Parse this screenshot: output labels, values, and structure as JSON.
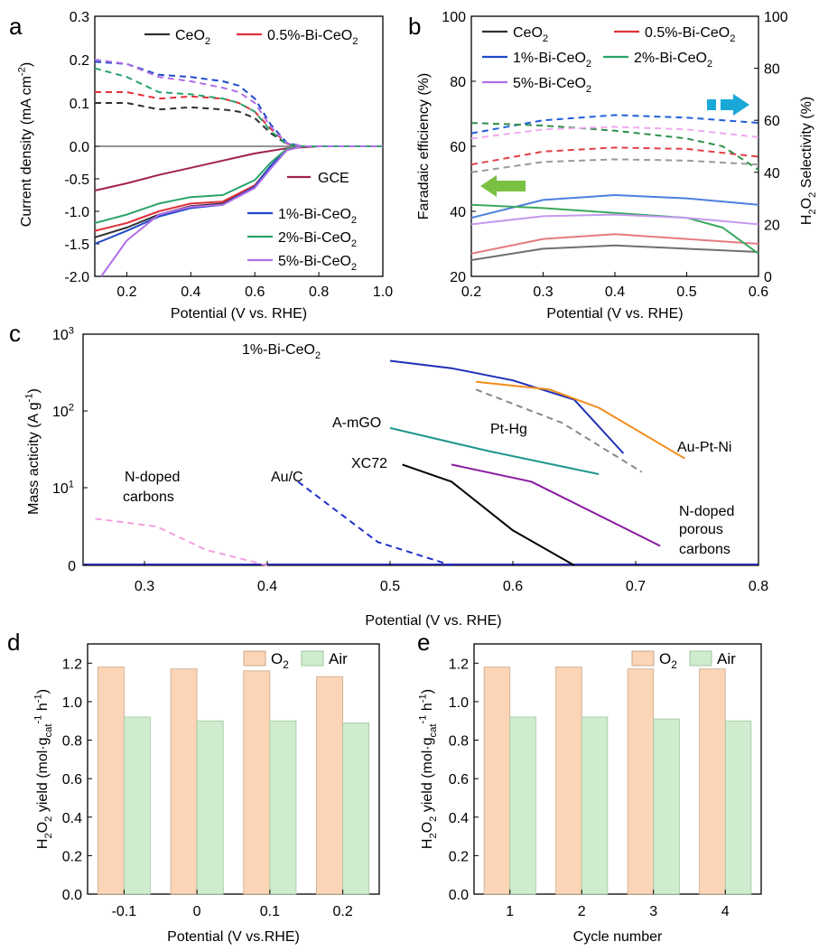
{
  "panels": {
    "a": {
      "letter": "a"
    },
    "b": {
      "letter": "b"
    },
    "c": {
      "letter": "c"
    },
    "d": {
      "letter": "d"
    },
    "e": {
      "letter": "e"
    }
  },
  "colors": {
    "CeO2": "#303030",
    "Bi05": "#e0313a",
    "Bi1": "#1f49c8",
    "Bi2": "#2aa36b",
    "Bi5": "#b06ee8",
    "GCE": "#a02050",
    "O2_bar": "#fbd5b6",
    "Air_bar": "#cfeccf",
    "arrow_green": "#7ac143",
    "arrow_cyan": "#1aa8d8"
  },
  "chart_data": [
    {
      "id": "a",
      "type": "line",
      "xlabel": "Potential (V vs. RHE)",
      "ylabel": "Current density (mA cm-2)",
      "xlim": [
        0.1,
        1.0
      ],
      "ylim": [
        -2.0,
        0.3
      ],
      "xticks": [
        "0.2",
        "0.4",
        "0.6",
        "0.8",
        "1.0"
      ],
      "yticks": [
        "-2.0",
        "-1.5",
        "-1.0",
        "-0.5",
        "0.0",
        "0.1",
        "0.2",
        "0.3"
      ],
      "legend": [
        "CeO2",
        "0.5%-Bi-CeO2",
        "GCE",
        "1%-Bi-CeO2",
        "2%-Bi-CeO2",
        "5%-Bi-CeO2"
      ],
      "series": [
        {
          "name": "CeO2",
          "kind": "disk",
          "x": [
            0.1,
            0.2,
            0.3,
            0.4,
            0.5,
            0.6,
            0.65,
            0.7,
            0.75,
            0.8,
            1.0
          ],
          "y": [
            -1.4,
            -1.25,
            -1.05,
            -0.92,
            -0.88,
            -0.6,
            -0.3,
            -0.05,
            0.0,
            0.0,
            0.0
          ]
        },
        {
          "name": "0.5%-Bi-CeO2",
          "kind": "disk",
          "x": [
            0.1,
            0.2,
            0.3,
            0.4,
            0.5,
            0.6,
            0.65,
            0.7,
            0.75,
            0.8,
            1.0
          ],
          "y": [
            -1.3,
            -1.18,
            -1.0,
            -0.88,
            -0.85,
            -0.6,
            -0.32,
            -0.06,
            0.0,
            0.0,
            0.0
          ]
        },
        {
          "name": "GCE",
          "kind": "disk",
          "x": [
            0.1,
            0.2,
            0.3,
            0.4,
            0.5,
            0.6,
            0.7,
            0.8,
            0.9,
            1.0
          ],
          "y": [
            -0.68,
            -0.57,
            -0.44,
            -0.33,
            -0.22,
            -0.11,
            -0.03,
            0.0,
            0.0,
            0.0
          ]
        },
        {
          "name": "1%-Bi-CeO2",
          "kind": "disk",
          "x": [
            0.1,
            0.2,
            0.3,
            0.4,
            0.5,
            0.6,
            0.65,
            0.7,
            0.75,
            0.8,
            1.0
          ],
          "y": [
            -1.5,
            -1.3,
            -1.08,
            -0.95,
            -0.9,
            -0.62,
            -0.3,
            -0.05,
            0.0,
            0.0,
            0.0
          ]
        },
        {
          "name": "2%-Bi-CeO2",
          "kind": "disk",
          "x": [
            0.1,
            0.2,
            0.3,
            0.4,
            0.5,
            0.6,
            0.65,
            0.7,
            0.75,
            0.8,
            1.0
          ],
          "y": [
            -1.18,
            -1.05,
            -0.88,
            -0.78,
            -0.75,
            -0.52,
            -0.25,
            -0.04,
            0.0,
            0.0,
            0.0
          ]
        },
        {
          "name": "5%-Bi-CeO2",
          "kind": "disk",
          "x": [
            0.12,
            0.2,
            0.3,
            0.4,
            0.5,
            0.6,
            0.65,
            0.7,
            0.75,
            0.8,
            1.0
          ],
          "y": [
            -2.0,
            -1.45,
            -1.05,
            -0.93,
            -0.9,
            -0.64,
            -0.34,
            -0.06,
            0.0,
            0.0,
            0.0
          ]
        },
        {
          "name": "CeO2 ring",
          "kind": "ring",
          "x": [
            0.1,
            0.2,
            0.3,
            0.4,
            0.5,
            0.55,
            0.6,
            0.65,
            0.7,
            0.75,
            0.8,
            0.9,
            1.0
          ],
          "y": [
            0.1,
            0.1,
            0.085,
            0.09,
            0.085,
            0.08,
            0.065,
            0.03,
            0.005,
            0.0,
            0.0,
            0.0,
            0.0
          ]
        },
        {
          "name": "0.5%-Bi-CeO2 ring",
          "kind": "ring",
          "x": [
            0.1,
            0.2,
            0.3,
            0.4,
            0.5,
            0.55,
            0.6,
            0.65,
            0.7,
            0.75,
            0.8,
            0.9,
            1.0
          ],
          "y": [
            0.125,
            0.125,
            0.11,
            0.115,
            0.11,
            0.1,
            0.08,
            0.04,
            0.006,
            0.0,
            0.0,
            0.0,
            0.0
          ]
        },
        {
          "name": "1%-Bi-CeO2 ring",
          "kind": "ring",
          "x": [
            0.1,
            0.2,
            0.3,
            0.4,
            0.5,
            0.55,
            0.6,
            0.65,
            0.7,
            0.75,
            0.8,
            0.9,
            1.0
          ],
          "y": [
            0.195,
            0.19,
            0.165,
            0.16,
            0.15,
            0.14,
            0.11,
            0.05,
            0.008,
            0.0,
            0.0,
            0.0,
            0.0
          ]
        },
        {
          "name": "2%-Bi-CeO2 ring",
          "kind": "ring",
          "x": [
            0.1,
            0.2,
            0.3,
            0.4,
            0.5,
            0.55,
            0.6,
            0.65,
            0.7,
            0.75,
            0.8,
            0.9,
            1.0
          ],
          "y": [
            0.18,
            0.16,
            0.125,
            0.12,
            0.11,
            0.1,
            0.08,
            0.035,
            0.005,
            0.0,
            0.0,
            0.0,
            0.0
          ]
        },
        {
          "name": "5%-Bi-CeO2 ring",
          "kind": "ring",
          "x": [
            0.1,
            0.2,
            0.3,
            0.4,
            0.5,
            0.55,
            0.6,
            0.65,
            0.7,
            0.75,
            0.8,
            0.9,
            1.0
          ],
          "y": [
            0.2,
            0.19,
            0.16,
            0.15,
            0.135,
            0.125,
            0.1,
            0.045,
            0.007,
            0.0,
            0.0,
            0.0,
            0.0
          ]
        }
      ]
    },
    {
      "id": "b",
      "type": "line",
      "xlabel": "Potential (V vs. RHE)",
      "ylabel_left": "Faradaic efficiency (%)",
      "ylabel_right": "H2O2 Selectivity (%)",
      "xlim": [
        0.2,
        0.6
      ],
      "ylim_left": [
        20,
        100
      ],
      "ylim_right": [
        0,
        100
      ],
      "xticks": [
        "0.2",
        "0.3",
        "0.4",
        "0.5",
        "0.6"
      ],
      "yticks_left": [
        "20",
        "40",
        "60",
        "80",
        "100"
      ],
      "yticks_right": [
        "0",
        "20",
        "40",
        "60",
        "80",
        "100"
      ],
      "legend": [
        "CeO2",
        "0.5%-Bi-CeO2",
        "1%-Bi-CeO2",
        "2%-Bi-CeO2",
        "5%-Bi-CeO2"
      ],
      "series": [
        {
          "name": "CeO2 FE",
          "axis": "left",
          "x": [
            0.2,
            0.3,
            0.4,
            0.5,
            0.6
          ],
          "y": [
            25,
            28.5,
            29.5,
            28.5,
            27.5
          ]
        },
        {
          "name": "0.5%-Bi-CeO2 FE",
          "axis": "left",
          "x": [
            0.2,
            0.3,
            0.4,
            0.5,
            0.6
          ],
          "y": [
            27,
            31.5,
            33,
            31.5,
            30
          ]
        },
        {
          "name": "1%-Bi-CeO2 FE",
          "axis": "left",
          "x": [
            0.2,
            0.3,
            0.4,
            0.5,
            0.6
          ],
          "y": [
            38,
            43.5,
            45,
            44,
            42
          ]
        },
        {
          "name": "2%-Bi-CeO2 FE",
          "axis": "left",
          "x": [
            0.2,
            0.3,
            0.4,
            0.5,
            0.55,
            0.6
          ],
          "y": [
            42,
            41,
            39.5,
            38,
            35,
            27
          ]
        },
        {
          "name": "5%-Bi-CeO2 FE",
          "axis": "left",
          "x": [
            0.2,
            0.3,
            0.4,
            0.5,
            0.6
          ],
          "y": [
            36,
            38.5,
            39,
            38,
            36
          ]
        },
        {
          "name": "CeO2 Sel",
          "axis": "right",
          "x": [
            0.2,
            0.3,
            0.4,
            0.5,
            0.6
          ],
          "y": [
            40,
            44,
            45,
            44.5,
            43
          ]
        },
        {
          "name": "0.5%-Bi-CeO2 Sel",
          "axis": "right",
          "x": [
            0.2,
            0.3,
            0.4,
            0.5,
            0.6
          ],
          "y": [
            43,
            48,
            49.5,
            49,
            46
          ]
        },
        {
          "name": "1%-Bi-CeO2 Sel",
          "axis": "right",
          "x": [
            0.2,
            0.3,
            0.4,
            0.5,
            0.6
          ],
          "y": [
            55,
            60,
            62,
            61,
            59
          ]
        },
        {
          "name": "2%-Bi-CeO2 Sel",
          "axis": "right",
          "x": [
            0.2,
            0.3,
            0.4,
            0.5,
            0.55,
            0.6
          ],
          "y": [
            59,
            58,
            56,
            53,
            50,
            41
          ]
        },
        {
          "name": "5%-Bi-CeO2 Sel",
          "axis": "right",
          "x": [
            0.2,
            0.3,
            0.4,
            0.5,
            0.6
          ],
          "y": [
            53,
            56.5,
            57.5,
            56.5,
            53.5
          ]
        }
      ]
    },
    {
      "id": "c",
      "type": "line",
      "xlabel": "Potential (V vs. RHE)",
      "ylabel": "Mass acticity (A g-1)",
      "xlim": [
        0.25,
        0.8
      ],
      "yscale": "log (bottom tick 0)",
      "xticks": [
        "0.3",
        "0.4",
        "0.5",
        "0.6",
        "0.7",
        "0.8"
      ],
      "ytick_labels": [
        "0",
        "10",
        "10",
        "10"
      ],
      "ytick_exponents": [
        "",
        "1",
        "2",
        "3"
      ],
      "series": [
        {
          "name": "1%-Bi-CeO2",
          "style": "solid",
          "color": "#1f2fb8",
          "x": [
            0.5,
            0.55,
            0.6,
            0.65,
            0.69
          ],
          "y": [
            450,
            360,
            250,
            140,
            28
          ]
        },
        {
          "name": "Au-Pt-Ni",
          "style": "solid",
          "color": "#f28c1c",
          "x": [
            0.57,
            0.63,
            0.67,
            0.74
          ],
          "y": [
            240,
            190,
            110,
            24
          ]
        },
        {
          "name": "Pt-Hg",
          "style": "dashed",
          "color": "#888888",
          "x": [
            0.57,
            0.64,
            0.705
          ],
          "y": [
            190,
            70,
            16
          ]
        },
        {
          "name": "A-mGO",
          "style": "solid",
          "color": "#1f968c",
          "x": [
            0.5,
            0.58,
            0.67
          ],
          "y": [
            60,
            30,
            15
          ]
        },
        {
          "name": "XC72",
          "style": "solid",
          "color": "#000000",
          "x": [
            0.51,
            0.55,
            0.6,
            0.65
          ],
          "y": [
            20,
            12,
            4.5,
            0
          ]
        },
        {
          "name": "N-doped porous carbons",
          "style": "solid",
          "color": "#8a1aa0",
          "x": [
            0.55,
            0.615,
            0.72
          ],
          "y": [
            20,
            12,
            2.5
          ]
        },
        {
          "name": "Au/C",
          "style": "dashed",
          "color": "#1f2fcc",
          "x": [
            0.425,
            0.49,
            0.55
          ],
          "y": [
            12,
            3,
            0
          ]
        },
        {
          "name": "N-doped carbons",
          "style": "dashed",
          "color": "#f2a0e0",
          "x": [
            0.26,
            0.31,
            0.35,
            0.4
          ],
          "y": [
            6,
            5,
            2,
            0
          ]
        }
      ],
      "labels": {
        "bi1": "1%-Bi-CeO2",
        "auptni": "Au-Pt-Ni",
        "pthg": "Pt-Hg",
        "amgo": "A-mGO",
        "xc72": "XC72",
        "npc1": "N-doped",
        "npc2": "porous",
        "npc3": "carbons",
        "auc": "Au/C",
        "nc1": "N-doped",
        "nc2": "carbons"
      }
    },
    {
      "id": "d",
      "type": "bar",
      "xlabel": "Potential (V vs.RHE)",
      "ylabel": "H2O2 yield (mol·gcat-1 h-1)",
      "categories": [
        "-0.1",
        "0",
        "0.1",
        "0.2"
      ],
      "ylim": [
        0,
        1.3
      ],
      "yticks": [
        "0.0",
        "0.2",
        "0.4",
        "0.6",
        "0.8",
        "1.0",
        "1.2"
      ],
      "series": [
        {
          "name": "O2",
          "values": [
            1.18,
            1.17,
            1.16,
            1.13
          ]
        },
        {
          "name": "Air",
          "values": [
            0.92,
            0.9,
            0.9,
            0.89
          ]
        }
      ]
    },
    {
      "id": "e",
      "type": "bar",
      "xlabel": "Cycle number",
      "ylabel": "H2O2 yield (mol·gcat-1 h-1)",
      "categories": [
        "1",
        "2",
        "3",
        "4"
      ],
      "ylim": [
        0,
        1.3
      ],
      "yticks": [
        "0.0",
        "0.2",
        "0.4",
        "0.6",
        "0.8",
        "1.0",
        "1.2"
      ],
      "series": [
        {
          "name": "O2",
          "values": [
            1.18,
            1.18,
            1.17,
            1.17
          ]
        },
        {
          "name": "Air",
          "values": [
            0.92,
            0.92,
            0.91,
            0.9
          ]
        }
      ]
    }
  ]
}
